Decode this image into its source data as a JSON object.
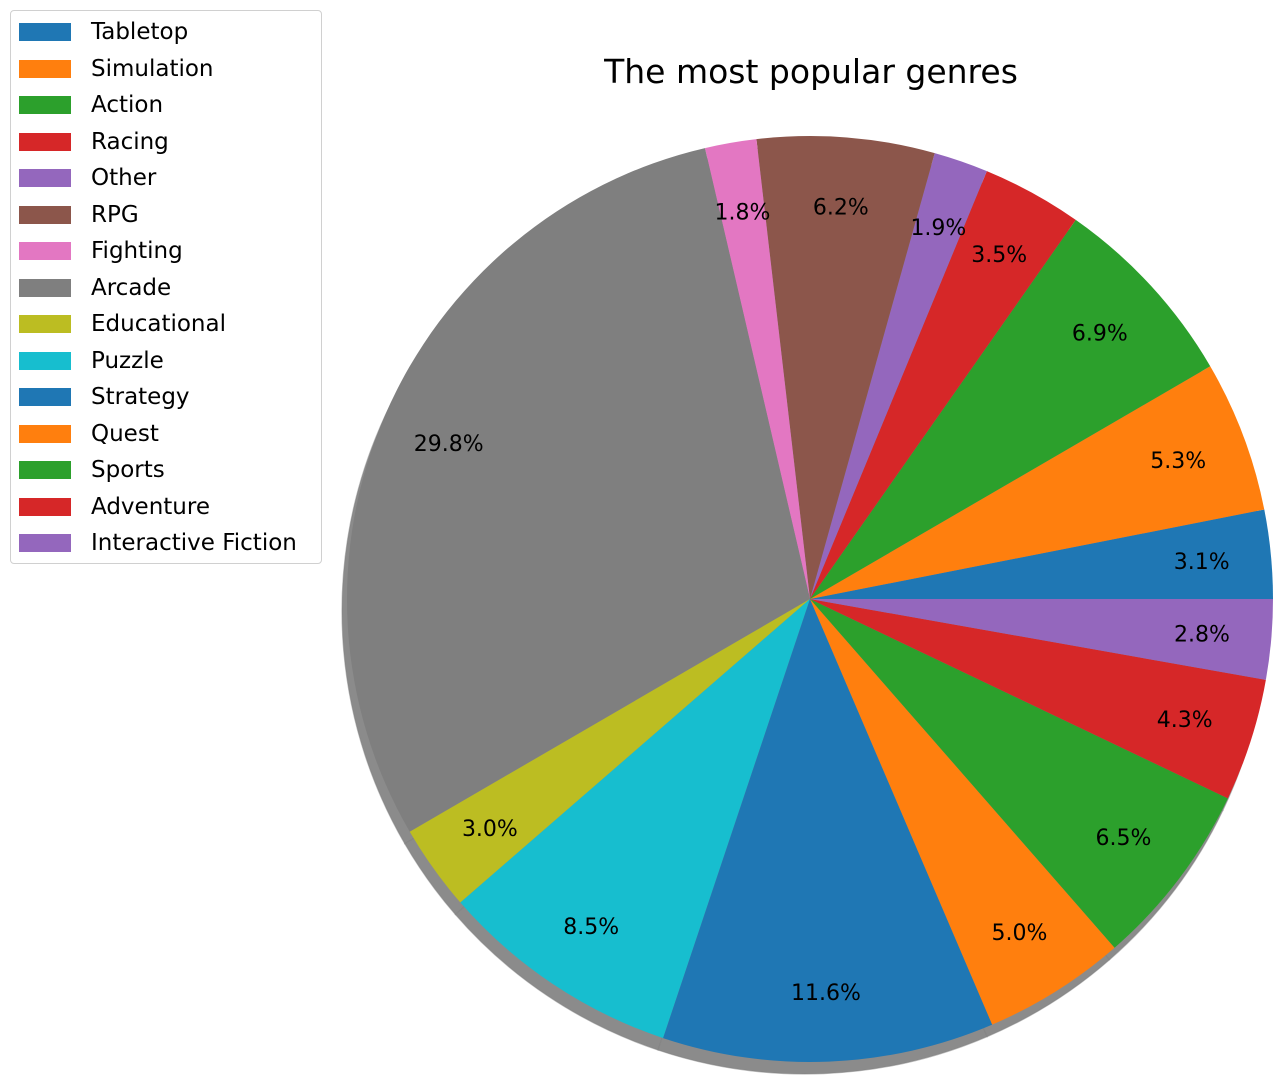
{
  "chart_data": {
    "type": "pie",
    "title": "The most popular genres",
    "shadow": true,
    "start_angle_deg": 0,
    "direction": "counterclockwise",
    "legend_position": "top-left",
    "slices": [
      {
        "label": "Tabletop",
        "value": 3.1,
        "pct_label": "3.1%",
        "color": "#1f77b4"
      },
      {
        "label": "Simulation",
        "value": 5.3,
        "pct_label": "5.3%",
        "color": "#ff7f0e"
      },
      {
        "label": "Action",
        "value": 6.9,
        "pct_label": "6.9%",
        "color": "#2ca02c"
      },
      {
        "label": "Racing",
        "value": 3.5,
        "pct_label": "3.5%",
        "color": "#d62728"
      },
      {
        "label": "Other",
        "value": 1.9,
        "pct_label": "1.9%",
        "color": "#9467bd"
      },
      {
        "label": "RPG",
        "value": 6.2,
        "pct_label": "6.2%",
        "color": "#8c564b"
      },
      {
        "label": "Fighting",
        "value": 1.8,
        "pct_label": "1.8%",
        "color": "#e377c2"
      },
      {
        "label": "Arcade",
        "value": 29.8,
        "pct_label": "29.8%",
        "color": "#7f7f7f"
      },
      {
        "label": "Educational",
        "value": 3.0,
        "pct_label": "3.0%",
        "color": "#bcbd22"
      },
      {
        "label": "Puzzle",
        "value": 8.5,
        "pct_label": "8.5%",
        "color": "#17becf"
      },
      {
        "label": "Strategy",
        "value": 11.6,
        "pct_label": "11.6%",
        "color": "#1f77b4"
      },
      {
        "label": "Quest",
        "value": 5.0,
        "pct_label": "5.0%",
        "color": "#ff7f0e"
      },
      {
        "label": "Sports",
        "value": 6.5,
        "pct_label": "6.5%",
        "color": "#2ca02c"
      },
      {
        "label": "Adventure",
        "value": 4.3,
        "pct_label": "4.3%",
        "color": "#d62728"
      },
      {
        "label": "Interactive Fiction",
        "value": 2.8,
        "pct_label": "2.8%",
        "color": "#9467bd"
      }
    ]
  }
}
